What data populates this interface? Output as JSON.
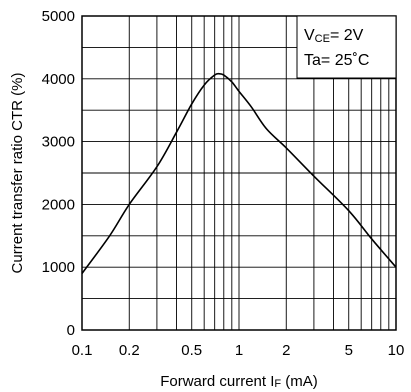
{
  "chart_data": {
    "type": "line",
    "title": "",
    "xlabel_main": "Forward current I",
    "xlabel_sub": "F",
    "xlabel_unit": " (mA)",
    "ylabel": "Current transfer ratio CTR (%)",
    "x_scale": "log",
    "xlim": [
      0.1,
      10
    ],
    "ylim": [
      0,
      5000
    ],
    "x_ticks": [
      {
        "value": 0.1,
        "label": "0.1"
      },
      {
        "value": 0.2,
        "label": "0.2"
      },
      {
        "value": 0.5,
        "label": "0.5"
      },
      {
        "value": 1,
        "label": "1"
      },
      {
        "value": 2,
        "label": "2"
      },
      {
        "value": 5,
        "label": "5"
      },
      {
        "value": 10,
        "label": "10"
      }
    ],
    "y_ticks": [
      {
        "value": 0,
        "label": "0"
      },
      {
        "value": 1000,
        "label": "1000"
      },
      {
        "value": 2000,
        "label": "2000"
      },
      {
        "value": 3000,
        "label": "3000"
      },
      {
        "value": 4000,
        "label": "4000"
      },
      {
        "value": 5000,
        "label": "5000"
      }
    ],
    "grid": true,
    "series": [
      {
        "x": [
          0.1,
          0.15,
          0.2,
          0.3,
          0.4,
          0.5,
          0.6,
          0.7,
          0.75,
          0.8,
          0.9,
          1.0,
          1.2,
          1.5,
          2.0,
          3.0,
          5.0,
          7.0,
          10.0
        ],
        "y": [
          900,
          1500,
          2000,
          2600,
          3150,
          3600,
          3900,
          4060,
          4080,
          4060,
          3950,
          3800,
          3550,
          3200,
          2900,
          2450,
          1900,
          1450,
          1000
        ]
      }
    ],
    "annotation": {
      "line1_main": "V",
      "line1_sub": "CE",
      "line1_rest": "= 2V",
      "line2": "Ta= 25˚C"
    }
  }
}
